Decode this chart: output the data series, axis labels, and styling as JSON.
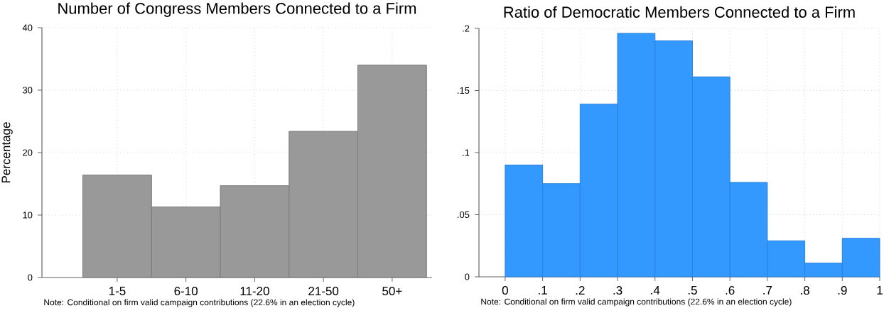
{
  "chart_data": [
    {
      "type": "bar",
      "title": "Number of Congress Members Connected to a Firm",
      "ylabel": "Percentage",
      "categories": [
        "1-5",
        "6-10",
        "11-20",
        "21-50",
        "50+"
      ],
      "values": [
        16.4,
        11.3,
        14.7,
        23.4,
        34.0
      ],
      "color": "#999999",
      "ylim": [
        0,
        40
      ],
      "yticks": [
        0,
        10,
        20,
        30,
        40
      ],
      "grid": true,
      "annotations": [
        "Note: Conditional on firm valid campaign contributions (22.6% in an election cycle)"
      ]
    },
    {
      "type": "histogram",
      "title": "Ratio of Democratic Members Connected to a Firm",
      "bins": [
        0,
        0.1,
        0.2,
        0.3,
        0.4,
        0.5,
        0.6,
        0.7,
        0.8,
        0.9,
        1
      ],
      "values": [
        0.09,
        0.075,
        0.139,
        0.196,
        0.19,
        0.161,
        0.076,
        0.029,
        0.011,
        0.031
      ],
      "color": "#3399ff",
      "xlim": [
        -0.07,
        1
      ],
      "xticks": [
        0,
        {
          "value": 0.1,
          "label": ".1"
        },
        {
          "value": 0.2,
          "label": ".2"
        },
        {
          "value": 0.3,
          "label": ".3"
        },
        {
          "value": 0.4,
          "label": ".4"
        },
        {
          "value": 0.5,
          "label": ".5"
        },
        {
          "value": 0.6,
          "label": ".6"
        },
        {
          "value": 0.7,
          "label": ".7"
        },
        {
          "value": 0.8,
          "label": ".8"
        },
        {
          "value": 0.9,
          "label": ".9"
        },
        1
      ],
      "ylim": [
        0,
        0.2
      ],
      "yticks": [
        0,
        {
          "value": 0.05,
          "label": ".05"
        },
        {
          "value": 0.1,
          "label": ".1"
        },
        {
          "value": 0.15,
          "label": ".15"
        },
        {
          "value": 0.2,
          "label": ".2"
        }
      ],
      "grid": true,
      "annotations": [
        "Note: Conditional on firm valid campaign contributions (22.6% in an election cycle)"
      ]
    }
  ]
}
